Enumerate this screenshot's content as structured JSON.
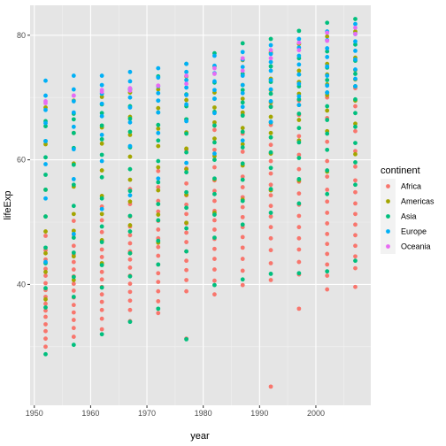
{
  "chart_data": {
    "type": "scatter",
    "xlabel": "year",
    "ylabel": "lifeExp",
    "xlim": [
      1949.25,
      2009.75
    ],
    "ylim": [
      20.6,
      84.8
    ],
    "x_ticks": [
      1950,
      1960,
      1970,
      1980,
      1990,
      2000
    ],
    "y_ticks": [
      40,
      60,
      80
    ],
    "x_tick_labels": [
      "1950",
      "1960",
      "1970",
      "1980",
      "1990",
      "2000"
    ],
    "y_tick_labels": [
      "40",
      "60",
      "80"
    ],
    "grid": true,
    "background": "#e5e5e5",
    "legend": {
      "title": "continent",
      "placement": "right"
    },
    "series": [
      {
        "name": "Africa",
        "color": "#F8766D",
        "x": [
          1952,
          1952,
          1952,
          1952,
          1952,
          1952,
          1952,
          1952,
          1952,
          1952,
          1952,
          1952,
          1952,
          1952,
          1952,
          1957,
          1957,
          1957,
          1957,
          1957,
          1957,
          1957,
          1957,
          1957,
          1957,
          1957,
          1957,
          1957,
          1957,
          1957,
          1962,
          1962,
          1962,
          1962,
          1962,
          1962,
          1962,
          1962,
          1962,
          1962,
          1962,
          1962,
          1962,
          1962,
          1962,
          1967,
          1967,
          1967,
          1967,
          1967,
          1967,
          1967,
          1967,
          1967,
          1967,
          1967,
          1967,
          1967,
          1967,
          1967,
          1972,
          1972,
          1972,
          1972,
          1972,
          1972,
          1972,
          1972,
          1972,
          1972,
          1972,
          1972,
          1972,
          1972,
          1972,
          1977,
          1977,
          1977,
          1977,
          1977,
          1977,
          1977,
          1977,
          1977,
          1977,
          1977,
          1977,
          1977,
          1977,
          1977,
          1982,
          1982,
          1982,
          1982,
          1982,
          1982,
          1982,
          1982,
          1982,
          1982,
          1982,
          1982,
          1982,
          1982,
          1982,
          1987,
          1987,
          1987,
          1987,
          1987,
          1987,
          1987,
          1987,
          1987,
          1987,
          1987,
          1987,
          1987,
          1987,
          1987,
          1992,
          1992,
          1992,
          1992,
          1992,
          1992,
          1992,
          1992,
          1992,
          1992,
          1992,
          1992,
          1992,
          1992,
          1992,
          1997,
          1997,
          1997,
          1997,
          1997,
          1997,
          1997,
          1997,
          1997,
          1997,
          1997,
          1997,
          1997,
          1997,
          1997,
          2002,
          2002,
          2002,
          2002,
          2002,
          2002,
          2002,
          2002,
          2002,
          2002,
          2002,
          2002,
          2002,
          2002,
          2002,
          2007,
          2007,
          2007,
          2007,
          2007,
          2007,
          2007,
          2007,
          2007,
          2007,
          2007,
          2007,
          2007,
          2007,
          2007
        ],
        "y": [
          30.0,
          31.3,
          32.5,
          33.6,
          34.8,
          35.8,
          36.9,
          38.0,
          39.1,
          40.2,
          41.4,
          42.5,
          44.0,
          45.5,
          47.8,
          31.6,
          33.0,
          34.3,
          35.5,
          36.7,
          37.9,
          39.0,
          40.1,
          41.3,
          42.4,
          43.6,
          44.8,
          46.2,
          48.0,
          50.2,
          32.8,
          34.5,
          35.9,
          37.2,
          38.4,
          39.6,
          40.8,
          42.0,
          43.2,
          44.4,
          45.6,
          46.9,
          48.4,
          50.3,
          52.5,
          34.1,
          35.9,
          37.4,
          38.8,
          40.1,
          41.4,
          42.7,
          44.0,
          45.3,
          46.6,
          47.9,
          49.3,
          50.9,
          52.9,
          55.3,
          35.4,
          37.3,
          38.9,
          40.4,
          41.8,
          43.2,
          44.6,
          46.0,
          47.4,
          48.8,
          50.2,
          51.7,
          53.4,
          55.6,
          58.2,
          31.3,
          38.9,
          40.7,
          42.3,
          43.8,
          45.3,
          46.8,
          48.3,
          49.8,
          51.3,
          52.8,
          54.3,
          56.2,
          58.6,
          61.6,
          38.4,
          40.6,
          42.4,
          44.1,
          45.7,
          47.3,
          48.8,
          50.3,
          51.8,
          53.4,
          55.0,
          56.7,
          58.8,
          61.6,
          64.8,
          39.9,
          42.2,
          44.1,
          45.9,
          47.6,
          49.2,
          50.8,
          52.4,
          54.0,
          55.6,
          57.3,
          59.1,
          61.3,
          64.2,
          67.3,
          23.6,
          40.7,
          43.4,
          45.5,
          47.4,
          49.2,
          50.9,
          52.6,
          54.3,
          56.0,
          57.8,
          59.8,
          62.4,
          65.6,
          68.6,
          36.1,
          41.6,
          43.6,
          45.6,
          47.4,
          49.2,
          51.0,
          52.8,
          54.6,
          56.5,
          58.5,
          60.8,
          63.8,
          67.2,
          69.5,
          39.2,
          41.4,
          43.2,
          44.9,
          46.5,
          48.1,
          49.8,
          51.5,
          53.3,
          55.2,
          57.3,
          59.8,
          62.9,
          66.7,
          70.0,
          39.6,
          42.6,
          44.5,
          46.2,
          47.9,
          49.6,
          51.3,
          53.0,
          54.8,
          56.7,
          58.9,
          61.4,
          64.6,
          68.6,
          71.5
        ]
      },
      {
        "name": "Americas",
        "color": "#A3A500",
        "x": [
          1952,
          1952,
          1952,
          1952,
          1952,
          1952,
          1952,
          1952,
          1957,
          1957,
          1957,
          1957,
          1957,
          1957,
          1957,
          1957,
          1962,
          1962,
          1962,
          1962,
          1962,
          1962,
          1962,
          1962,
          1967,
          1967,
          1967,
          1967,
          1967,
          1967,
          1967,
          1967,
          1972,
          1972,
          1972,
          1972,
          1972,
          1972,
          1972,
          1972,
          1977,
          1977,
          1977,
          1977,
          1977,
          1977,
          1977,
          1977,
          1982,
          1982,
          1982,
          1982,
          1982,
          1982,
          1982,
          1982,
          1987,
          1987,
          1987,
          1987,
          1987,
          1987,
          1987,
          1987,
          1992,
          1992,
          1992,
          1992,
          1992,
          1992,
          1992,
          1992,
          1997,
          1997,
          1997,
          1997,
          1997,
          1997,
          1997,
          1997,
          2002,
          2002,
          2002,
          2002,
          2002,
          2002,
          2002,
          2002,
          2007,
          2007,
          2007,
          2007,
          2007,
          2007,
          2007,
          2007
        ],
        "y": [
          37.6,
          42.0,
          45.0,
          48.5,
          50.9,
          55.2,
          62.5,
          68.4,
          40.7,
          44.5,
          48.6,
          51.3,
          55.7,
          59.4,
          64.3,
          69.5,
          43.4,
          47.1,
          51.3,
          54.2,
          58.3,
          62.6,
          65.2,
          70.1,
          45.0,
          49.5,
          53.3,
          56.8,
          60.5,
          64.0,
          66.9,
          70.8,
          46.7,
          51.2,
          55.1,
          58.8,
          62.2,
          65.0,
          68.3,
          71.3,
          49.9,
          54.4,
          58.5,
          61.8,
          64.4,
          66.5,
          69.6,
          73.4,
          51.5,
          56.9,
          60.6,
          63.4,
          66.0,
          68.4,
          70.8,
          75.0,
          53.6,
          59.1,
          62.5,
          65.1,
          67.6,
          69.8,
          72.0,
          76.0,
          55.1,
          61.0,
          64.3,
          66.9,
          69.2,
          71.2,
          73.0,
          77.2,
          56.7,
          63.1,
          66.4,
          68.8,
          70.6,
          72.5,
          74.3,
          78.6,
          58.1,
          64.6,
          67.9,
          70.4,
          72.1,
          73.7,
          75.4,
          79.8,
          60.9,
          65.8,
          69.5,
          71.8,
          72.9,
          74.4,
          76.4,
          80.6
        ]
      },
      {
        "name": "Asia",
        "color": "#00BF7D",
        "x": [
          1952,
          1952,
          1952,
          1952,
          1952,
          1952,
          1952,
          1952,
          1952,
          1952,
          1952,
          1952,
          1957,
          1957,
          1957,
          1957,
          1957,
          1957,
          1957,
          1957,
          1957,
          1957,
          1957,
          1957,
          1962,
          1962,
          1962,
          1962,
          1962,
          1962,
          1962,
          1962,
          1962,
          1962,
          1962,
          1962,
          1967,
          1967,
          1967,
          1967,
          1967,
          1967,
          1967,
          1967,
          1967,
          1967,
          1967,
          1967,
          1972,
          1972,
          1972,
          1972,
          1972,
          1972,
          1972,
          1972,
          1972,
          1972,
          1972,
          1972,
          1977,
          1977,
          1977,
          1977,
          1977,
          1977,
          1977,
          1977,
          1977,
          1977,
          1977,
          1977,
          1982,
          1982,
          1982,
          1982,
          1982,
          1982,
          1982,
          1982,
          1982,
          1982,
          1982,
          1982,
          1987,
          1987,
          1987,
          1987,
          1987,
          1987,
          1987,
          1987,
          1987,
          1987,
          1987,
          1987,
          1992,
          1992,
          1992,
          1992,
          1992,
          1992,
          1992,
          1992,
          1992,
          1992,
          1992,
          1992,
          1997,
          1997,
          1997,
          1997,
          1997,
          1997,
          1997,
          1997,
          1997,
          1997,
          1997,
          1997,
          2002,
          2002,
          2002,
          2002,
          2002,
          2002,
          2002,
          2002,
          2002,
          2002,
          2002,
          2002,
          2007,
          2007,
          2007,
          2007,
          2007,
          2007,
          2007,
          2007,
          2007,
          2007,
          2007,
          2007
        ],
        "y": [
          28.8,
          36.3,
          39.4,
          43.4,
          45.9,
          50.9,
          55.2,
          57.6,
          60.4,
          63.0,
          65.4,
          66.2,
          30.3,
          38.0,
          41.2,
          45.1,
          47.5,
          52.6,
          56.0,
          59.2,
          61.9,
          64.3,
          66.5,
          67.4,
          32.0,
          39.5,
          43.1,
          46.8,
          49.3,
          53.8,
          57.2,
          60.8,
          63.3,
          65.5,
          67.5,
          68.9,
          34.0,
          41.3,
          45.0,
          48.5,
          51.0,
          55.0,
          58.5,
          62.0,
          64.5,
          66.6,
          68.6,
          71.4,
          36.1,
          43.2,
          47.0,
          50.3,
          52.9,
          56.4,
          59.8,
          63.1,
          65.6,
          67.6,
          69.5,
          73.4,
          31.2,
          45.3,
          49.0,
          52.3,
          54.8,
          58.0,
          61.2,
          64.2,
          66.5,
          68.6,
          70.5,
          75.4,
          39.9,
          47.5,
          51.2,
          54.5,
          57.0,
          60.0,
          62.8,
          65.5,
          67.7,
          69.8,
          72.4,
          77.1,
          40.8,
          49.6,
          53.4,
          56.8,
          59.4,
          62.0,
          64.5,
          67.1,
          69.2,
          71.2,
          73.8,
          78.7,
          41.7,
          51.5,
          55.3,
          58.7,
          61.2,
          63.6,
          66.0,
          68.5,
          70.6,
          72.5,
          75.0,
          79.4,
          41.8,
          53.0,
          56.9,
          60.3,
          62.8,
          65.1,
          67.4,
          69.7,
          71.8,
          73.7,
          76.3,
          80.7,
          42.1,
          54.5,
          58.3,
          61.6,
          64.2,
          66.4,
          68.6,
          70.8,
          72.8,
          74.8,
          77.4,
          82.0,
          43.8,
          56.0,
          59.6,
          62.7,
          65.3,
          67.5,
          69.7,
          71.8,
          73.8,
          75.9,
          78.5,
          82.6
        ]
      },
      {
        "name": "Europe",
        "color": "#00B0F6",
        "x": [
          1952,
          1952,
          1952,
          1952,
          1952,
          1952,
          1952,
          1952,
          1957,
          1957,
          1957,
          1957,
          1957,
          1957,
          1957,
          1957,
          1962,
          1962,
          1962,
          1962,
          1962,
          1962,
          1962,
          1962,
          1967,
          1967,
          1967,
          1967,
          1967,
          1967,
          1967,
          1967,
          1972,
          1972,
          1972,
          1972,
          1972,
          1972,
          1972,
          1972,
          1977,
          1977,
          1977,
          1977,
          1977,
          1977,
          1977,
          1977,
          1982,
          1982,
          1982,
          1982,
          1982,
          1982,
          1982,
          1982,
          1987,
          1987,
          1987,
          1987,
          1987,
          1987,
          1987,
          1987,
          1992,
          1992,
          1992,
          1992,
          1992,
          1992,
          1992,
          1992,
          1997,
          1997,
          1997,
          1997,
          1997,
          1997,
          1997,
          1997,
          2002,
          2002,
          2002,
          2002,
          2002,
          2002,
          2002,
          2002,
          2007,
          2007,
          2007,
          2007,
          2007,
          2007,
          2007,
          2007
        ],
        "y": [
          43.6,
          53.8,
          59.3,
          63.0,
          65.9,
          68.0,
          70.3,
          72.7,
          48.1,
          56.9,
          61.7,
          65.3,
          67.6,
          69.4,
          71.3,
          73.5,
          52.1,
          59.8,
          64.0,
          67.0,
          69.0,
          70.6,
          72.0,
          73.5,
          54.3,
          62.2,
          66.0,
          68.4,
          70.0,
          71.3,
          72.6,
          74.1,
          57.0,
          64.3,
          67.6,
          69.5,
          70.7,
          71.8,
          73.2,
          74.7,
          59.5,
          66.2,
          68.9,
          70.4,
          71.6,
          72.8,
          74.1,
          75.4,
          61.0,
          67.5,
          69.8,
          71.2,
          72.6,
          73.9,
          75.1,
          76.7,
          63.1,
          68.5,
          70.7,
          72.0,
          73.5,
          74.9,
          76.1,
          77.3,
          66.1,
          69.4,
          71.3,
          72.8,
          74.3,
          75.7,
          77.0,
          78.4,
          68.8,
          70.2,
          72.2,
          73.7,
          75.3,
          76.7,
          78.0,
          79.4,
          70.8,
          71.9,
          73.5,
          75.0,
          76.5,
          77.9,
          79.2,
          80.6,
          71.8,
          73.0,
          74.5,
          76.1,
          77.5,
          79.0,
          80.2,
          81.8
        ]
      },
      {
        "name": "Oceania",
        "color": "#E76BF3",
        "x": [
          1952,
          1952,
          1957,
          1957,
          1962,
          1962,
          1967,
          1967,
          1972,
          1972,
          1977,
          1977,
          1982,
          1982,
          1987,
          1987,
          1992,
          1992,
          1997,
          1997,
          2002,
          2002,
          2007,
          2007
        ],
        "y": [
          69.1,
          69.4,
          70.3,
          70.3,
          71.2,
          70.9,
          71.1,
          71.5,
          71.9,
          71.9,
          72.2,
          73.5,
          73.8,
          74.7,
          74.3,
          76.3,
          76.3,
          77.6,
          77.6,
          78.8,
          79.1,
          80.4,
          80.2,
          81.2
        ]
      }
    ]
  }
}
